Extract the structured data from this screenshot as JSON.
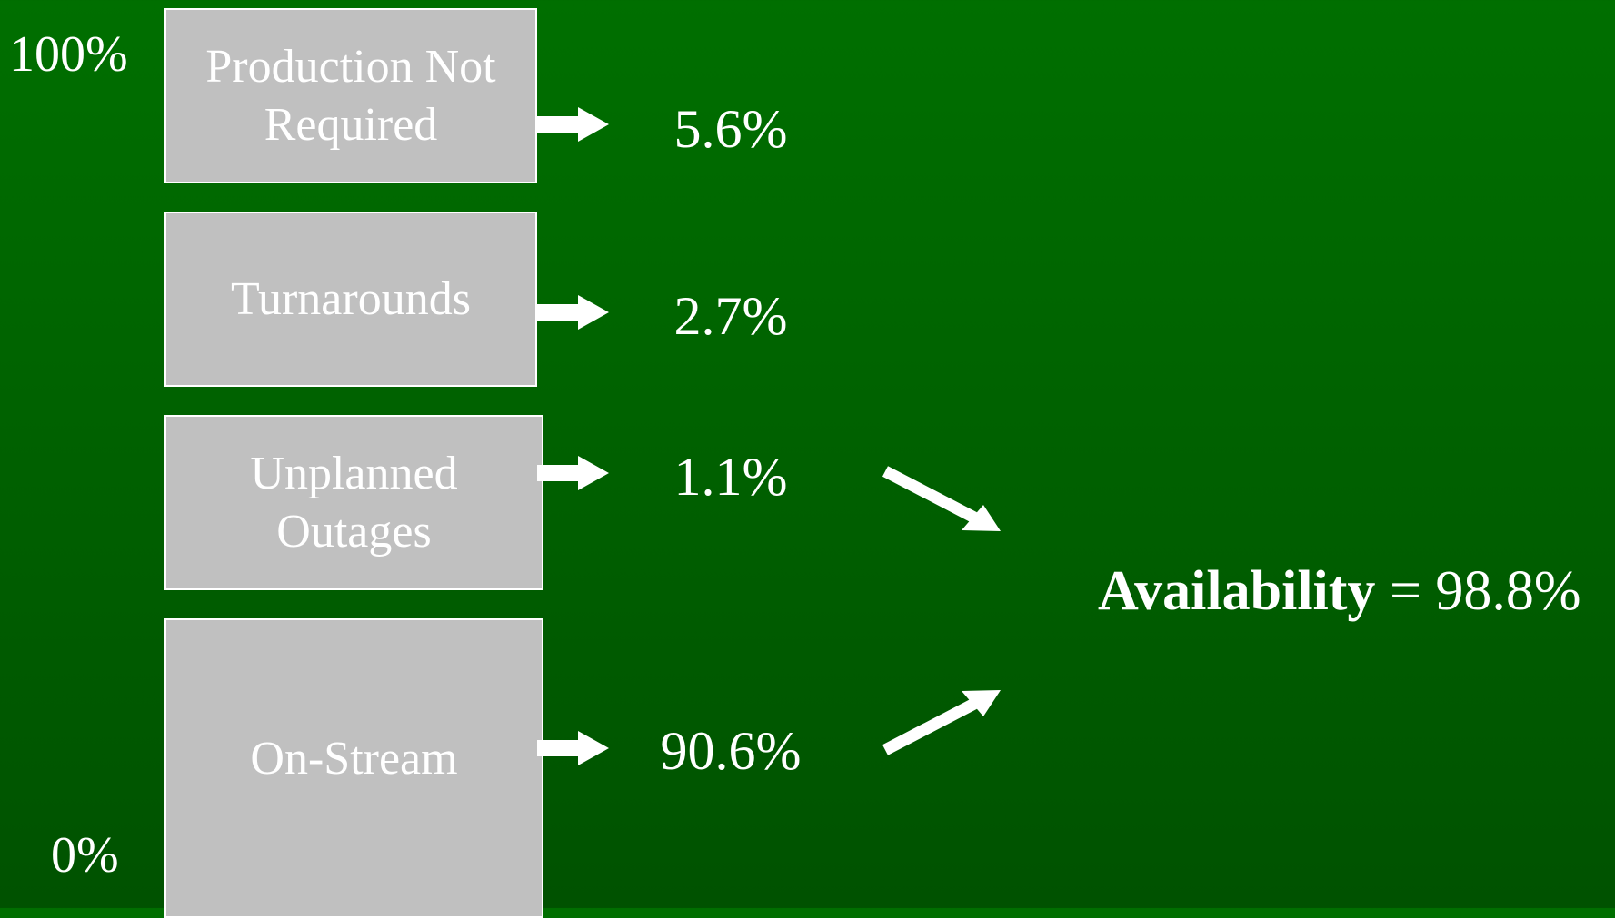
{
  "axis": {
    "top_label": "100%",
    "bottom_label": "0%"
  },
  "categories": [
    {
      "label": "Production Not Required",
      "value": "5.6%"
    },
    {
      "label": "Turnarounds",
      "value": "2.7%"
    },
    {
      "label": "Unplanned Outages",
      "value": "1.1%"
    },
    {
      "label": "On-Stream",
      "value": "90.6%"
    }
  ],
  "result": {
    "label": "Availability",
    "equals": "=",
    "value": "98.8%"
  },
  "colors": {
    "background_top": "#006f00",
    "background_bottom": "#005200",
    "box_fill": "#c0c0c0",
    "text": "#ffffff"
  }
}
